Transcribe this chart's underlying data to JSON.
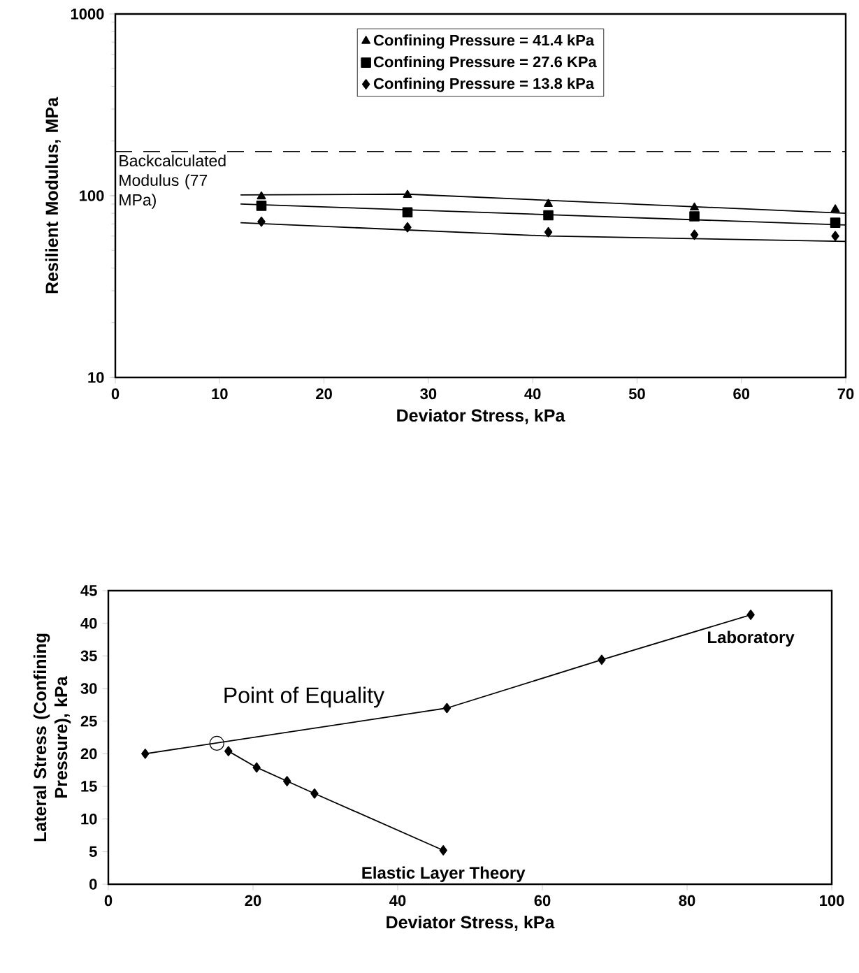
{
  "chart_data": [
    {
      "type": "scatter",
      "xlabel": "Deviator Stress, kPa",
      "ylabel": "Resilient Modulus, MPa",
      "log": "y",
      "xlim": [
        0,
        70
      ],
      "xticks": [
        0,
        10,
        20,
        30,
        40,
        50,
        60,
        70
      ],
      "ylim": [
        10,
        1000
      ],
      "yticks": [
        10,
        100,
        1000
      ],
      "legend": "top",
      "grid": false,
      "ref_lines": [
        {
          "axis": "y",
          "value": 175,
          "label": "Backcalculated Modulus (77 MPa)",
          "line_style": "dashed"
        }
      ],
      "series": [
        {
          "name": "Confining Pressure = 41.4 kPa",
          "color": "#000000",
          "marker": "triangle",
          "x": [
            14,
            28,
            41.5,
            55.5,
            69
          ],
          "values": [
            99,
            101,
            90,
            86,
            84
          ]
        },
        {
          "name": "Confining Pressure = 27.6 KPa",
          "color": "#000000",
          "marker": "square",
          "x": [
            14,
            28,
            41.5,
            55.5,
            69
          ],
          "values": [
            88,
            81,
            78,
            77,
            71
          ]
        },
        {
          "name": "Confining Pressure = 13.8 kPa",
          "color": "#000000",
          "marker": "diamond",
          "x": [
            14,
            28,
            41.5,
            55.5,
            69
          ],
          "values": [
            72,
            67,
            63,
            61,
            60
          ]
        },
        {
          "type": "line",
          "color": "#000000",
          "marker": "none",
          "x": [
            12,
            28,
            70
          ],
          "values": [
            101,
            102,
            80
          ]
        },
        {
          "type": "line",
          "color": "#000000",
          "marker": "none",
          "x": [
            12,
            70
          ],
          "values": [
            90,
            69
          ]
        },
        {
          "type": "line",
          "color": "#000000",
          "marker": "none",
          "x": [
            12,
            41.5,
            70
          ],
          "values": [
            71,
            60,
            56
          ]
        }
      ]
    },
    {
      "type": "line",
      "xlabel": "Deviator Stress, kPa",
      "ylabel": "Lateral Stress (Confining Pressure), kPa",
      "xlim": [
        0,
        100
      ],
      "xticks": [
        0,
        20,
        40,
        60,
        80,
        100
      ],
      "ylim": [
        0,
        45
      ],
      "yticks": [
        0,
        5,
        10,
        15,
        20,
        25,
        30,
        35,
        40,
        45
      ],
      "marker": "diamond",
      "grid": false,
      "annotations": [
        {
          "text": "Point of Equality",
          "x": 15,
          "y": 21.6
        }
      ],
      "series": [
        {
          "name": "Laboratory",
          "color": "#000000",
          "x": [
            5.1,
            46.8,
            68.2,
            88.8
          ],
          "values": [
            20.0,
            27.0,
            34.4,
            41.3
          ]
        },
        {
          "name": "Elastic Layer Theory",
          "color": "#000000",
          "x": [
            16.6,
            20.5,
            24.7,
            28.5,
            46.3
          ],
          "values": [
            20.4,
            17.9,
            15.8,
            13.9,
            5.2
          ]
        }
      ]
    }
  ]
}
